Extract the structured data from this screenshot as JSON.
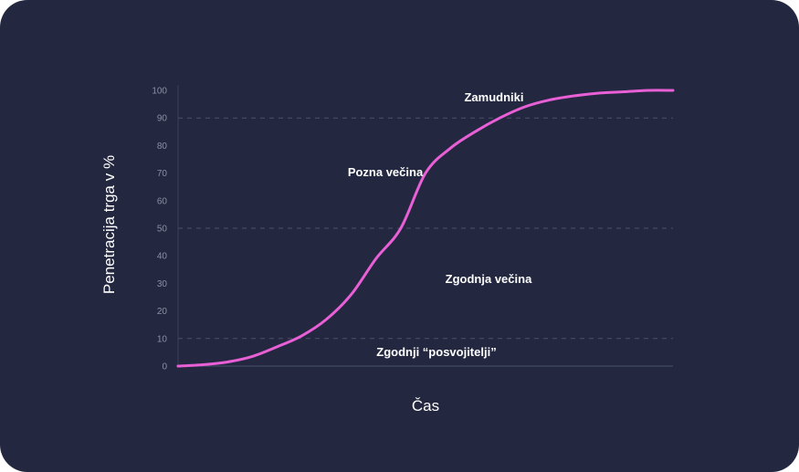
{
  "chart_data": {
    "type": "line",
    "title": "",
    "xlabel": "Čas",
    "ylabel": "Penetracija trga v %",
    "ylim": [
      0,
      100
    ],
    "yticks": [
      0,
      10,
      20,
      30,
      40,
      50,
      60,
      70,
      80,
      90,
      100
    ],
    "dashed_reference_lines": [
      10,
      50,
      90
    ],
    "grid": false,
    "series": [
      {
        "color": "#e85fd6",
        "x": [
          0,
          5,
          10,
          15,
          20,
          25,
          30,
          35,
          40,
          45,
          50,
          55,
          60,
          65,
          70,
          75,
          80,
          85,
          90,
          95,
          100
        ],
        "y": [
          0,
          0.5,
          1.5,
          3.5,
          7,
          11,
          17,
          26,
          39,
          50,
          70,
          79,
          85,
          90,
          94,
          96.5,
          98,
          99,
          99.5,
          100,
          100
        ]
      }
    ],
    "annotations": {
      "laggards": "Zamudniki",
      "late_majority": "Pozna večina",
      "early_majority": "Zgodnja večina",
      "early_adopters": "Zgodnji “posvojitelji”"
    }
  }
}
